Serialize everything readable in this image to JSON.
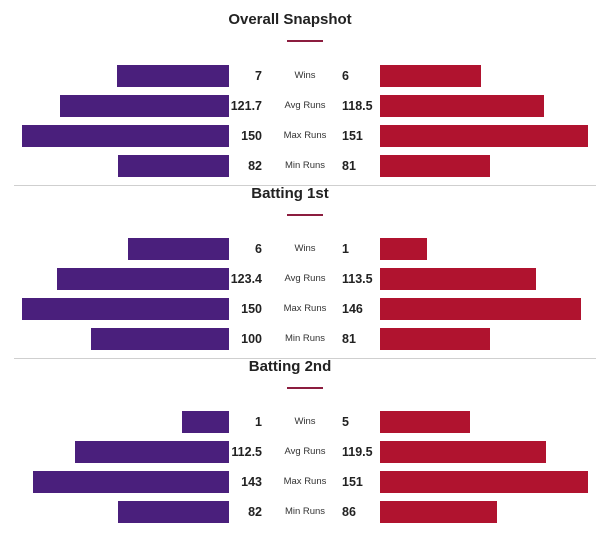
{
  "colors": {
    "team_a": "#4a1f7c",
    "team_b": "#b0132f",
    "accent": "#8c1d3f"
  },
  "sections": [
    {
      "title": "Overall Snapshot",
      "rows": [
        {
          "label": "Wins",
          "left": "7",
          "right": "6",
          "left_value": 7,
          "right_value": 6
        },
        {
          "label": "Avg Runs",
          "left": "121.7",
          "right": "118.5",
          "left_value": 121.7,
          "right_value": 118.5
        },
        {
          "label": "Max Runs",
          "left": "150",
          "right": "151",
          "left_value": 150,
          "right_value": 151
        },
        {
          "label": "Min Runs",
          "left": "82",
          "right": "81",
          "left_value": 82,
          "right_value": 81
        }
      ]
    },
    {
      "title": "Batting 1st",
      "rows": [
        {
          "label": "Wins",
          "left": "6",
          "right": "1",
          "left_value": 6,
          "right_value": 1
        },
        {
          "label": "Avg Runs",
          "left": "123.4",
          "right": "113.5",
          "left_value": 123.4,
          "right_value": 113.5
        },
        {
          "label": "Max Runs",
          "left": "150",
          "right": "146",
          "left_value": 150,
          "right_value": 146
        },
        {
          "label": "Min Runs",
          "left": "100",
          "right": "81",
          "left_value": 100,
          "right_value": 81
        }
      ]
    },
    {
      "title": "Batting 2nd",
      "rows": [
        {
          "label": "Wins",
          "left": "1",
          "right": "5",
          "left_value": 1,
          "right_value": 5
        },
        {
          "label": "Avg Runs",
          "left": "112.5",
          "right": "119.5",
          "left_value": 112.5,
          "right_value": 119.5
        },
        {
          "label": "Max Runs",
          "left": "143",
          "right": "151",
          "left_value": 143,
          "right_value": 151
        },
        {
          "label": "Min Runs",
          "left": "82",
          "right": "86",
          "left_value": 82,
          "right_value": 86
        }
      ]
    }
  ]
}
